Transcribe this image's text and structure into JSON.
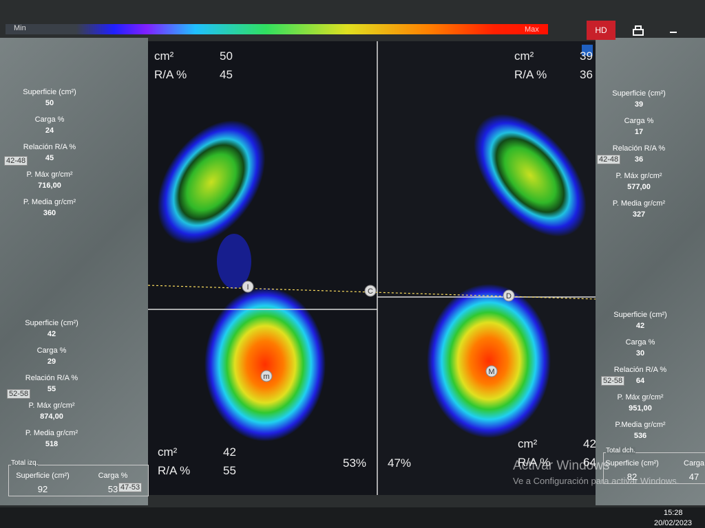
{
  "toolbar": {
    "min": "Min",
    "max": "Max",
    "hd": "HD"
  },
  "left_forefoot": {
    "range": "42-48",
    "rows": [
      {
        "label": "Superficie (cm²)",
        "value": "50"
      },
      {
        "label": "Carga %",
        "value": "24"
      },
      {
        "label": "Relación R/A %",
        "value": "45"
      },
      {
        "label": "P. Máx gr/cm²",
        "value": "716,00"
      },
      {
        "label": "P. Media gr/cm²",
        "value": "360"
      }
    ]
  },
  "left_rearfoot": {
    "range": "52-58",
    "rows": [
      {
        "label": "Superficie (cm²)",
        "value": "42"
      },
      {
        "label": "Carga %",
        "value": "29"
      },
      {
        "label": "Relación R/A %",
        "value": "55"
      },
      {
        "label": "P. Máx gr/cm²",
        "value": "874,00"
      },
      {
        "label": "P. Media gr/cm²",
        "value": "518"
      }
    ]
  },
  "left_total": {
    "title": "Total izq.",
    "range": "47-53",
    "items": [
      {
        "label": "Superficie (cm²)",
        "value": "92"
      },
      {
        "label": "Carga %",
        "value": "53"
      }
    ]
  },
  "right_forefoot": {
    "range": "42-48",
    "rows": [
      {
        "label": "Superficie (cm²)",
        "value": "39"
      },
      {
        "label": "Carga %",
        "value": "17"
      },
      {
        "label": "Relación R/A %",
        "value": "36"
      },
      {
        "label": "P. Máx gr/cm²",
        "value": "577,00"
      },
      {
        "label": "P. Media gr/cm²",
        "value": "327"
      }
    ]
  },
  "right_rearfoot": {
    "range": "52-58",
    "rows": [
      {
        "label": "Superficie (cm²)",
        "value": "42"
      },
      {
        "label": "Carga %",
        "value": "30"
      },
      {
        "label": "Relación R/A %",
        "value": "64"
      },
      {
        "label": "P. Máx gr/cm²",
        "value": "951,00"
      },
      {
        "label": "P.Media gr/cm²",
        "value": "536"
      }
    ]
  },
  "right_total": {
    "title": "Total dch.",
    "items": [
      {
        "label": "Superficie (cm²)",
        "value": "82"
      },
      {
        "label": "Carga",
        "value": "47"
      }
    ]
  },
  "image": {
    "top_left": {
      "unit": "cm²",
      "area": "50",
      "ra_label": "R/A %",
      "ra": "45"
    },
    "top_right": {
      "unit": "cm²",
      "area": "39",
      "ra_label": "R/A %",
      "ra": "36"
    },
    "bottom_left": {
      "unit": "cm²",
      "area": "42",
      "ra_label": "R/A %",
      "ra": "55"
    },
    "bottom_right": {
      "unit": "cm²",
      "area": "42",
      "ra_label": "R/A %",
      "ra": "64"
    },
    "left_percent": "53%",
    "right_percent": "47%",
    "markers": [
      "I",
      "C",
      "D",
      "m",
      "M"
    ]
  },
  "watermark": {
    "title": "Activar Windows",
    "text": "Ve a Configuración para activar Windows."
  },
  "taskbar": {
    "time": "15:28",
    "date": "20/02/2023"
  }
}
